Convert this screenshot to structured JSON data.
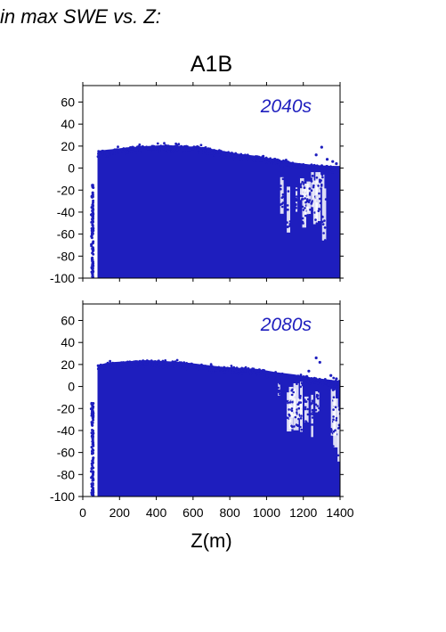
{
  "heading": "in max SWE vs. Z:",
  "panel_title": "A1B",
  "colors": {
    "points": "#1e1ebe",
    "frame": "#000000"
  },
  "chart_data": [
    {
      "type": "scatter",
      "annotation": "2040s",
      "xlabel": "Z(m)",
      "ylabel": "",
      "xlim": [
        0,
        1400
      ],
      "ylim": [
        -100,
        75
      ],
      "xticks": [
        0,
        200,
        400,
        600,
        800,
        1000,
        1200,
        1400
      ],
      "yticks": [
        60,
        40,
        20,
        0,
        -20,
        -40,
        -60,
        -80,
        -100
      ],
      "show_x_tick_labels": false,
      "grid": false,
      "upper_envelope": [
        [
          90,
          16
        ],
        [
          150,
          17
        ],
        [
          250,
          19
        ],
        [
          350,
          20
        ],
        [
          450,
          21
        ],
        [
          550,
          20
        ],
        [
          650,
          19
        ],
        [
          750,
          16
        ],
        [
          850,
          13
        ],
        [
          950,
          11
        ],
        [
          1050,
          8
        ],
        [
          1150,
          5
        ],
        [
          1250,
          3
        ],
        [
          1350,
          2
        ],
        [
          1400,
          2
        ]
      ],
      "x_range_dense": [
        80,
        1400
      ],
      "x_range_sparse": [
        45,
        80
      ],
      "y_floor": -100,
      "outliers": [
        [
          1300,
          19
        ],
        [
          1270,
          12
        ],
        [
          1330,
          8
        ],
        [
          1360,
          6
        ],
        [
          1380,
          4
        ]
      ]
    },
    {
      "type": "scatter",
      "annotation": "2080s",
      "xlabel": "Z(m)",
      "ylabel": "",
      "xlim": [
        0,
        1400
      ],
      "ylim": [
        -100,
        75
      ],
      "xticks": [
        0,
        200,
        400,
        600,
        800,
        1000,
        1200,
        1400
      ],
      "yticks": [
        60,
        40,
        20,
        0,
        -20,
        -40,
        -60,
        -80,
        -100
      ],
      "show_x_tick_labels": true,
      "grid": false,
      "upper_envelope": [
        [
          90,
          20
        ],
        [
          150,
          22
        ],
        [
          250,
          23
        ],
        [
          350,
          24
        ],
        [
          450,
          23
        ],
        [
          550,
          22
        ],
        [
          650,
          20
        ],
        [
          750,
          18
        ],
        [
          850,
          17
        ],
        [
          950,
          16
        ],
        [
          1050,
          13
        ],
        [
          1150,
          11
        ],
        [
          1250,
          8
        ],
        [
          1350,
          6
        ],
        [
          1400,
          5
        ]
      ],
      "x_range_dense": [
        80,
        1400
      ],
      "x_range_sparse": [
        45,
        80
      ],
      "y_floor": -100,
      "outliers": [
        [
          1270,
          26
        ],
        [
          1290,
          22
        ],
        [
          1230,
          14
        ],
        [
          1350,
          10
        ],
        [
          1380,
          7
        ]
      ]
    }
  ]
}
